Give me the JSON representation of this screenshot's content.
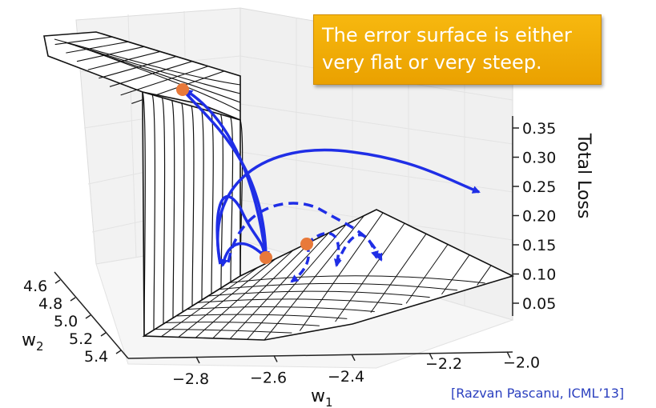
{
  "callout": {
    "line1": "The error surface is either",
    "line2": "very flat or very steep."
  },
  "citation": "[Razvan Pascanu, ICML’13]",
  "chart_data": {
    "type": "surface3d",
    "title": "",
    "zlabel": "Total Loss",
    "xlabel": "w",
    "xlabel_sub": "1",
    "ylabel": "w",
    "ylabel_sub": "2",
    "z_ticks": [
      "0.35",
      "0.30",
      "0.25",
      "0.20",
      "0.15",
      "0.10",
      "0.05"
    ],
    "x_ticks": [
      "−2.8",
      "−2.6",
      "−2.4",
      "−2.2",
      "−2.0"
    ],
    "y_ticks": [
      "4.6",
      "4.8",
      "5.0",
      "5.2",
      "5.4"
    ],
    "xlim": [
      -2.9,
      -1.9
    ],
    "ylim": [
      4.5,
      5.5
    ],
    "zlim": [
      0.05,
      0.35
    ],
    "annotations": {
      "points": 3,
      "trajectories": "gradient-descent steps bouncing across a steep cliff (solid) and along the flat region (dashed)"
    }
  }
}
